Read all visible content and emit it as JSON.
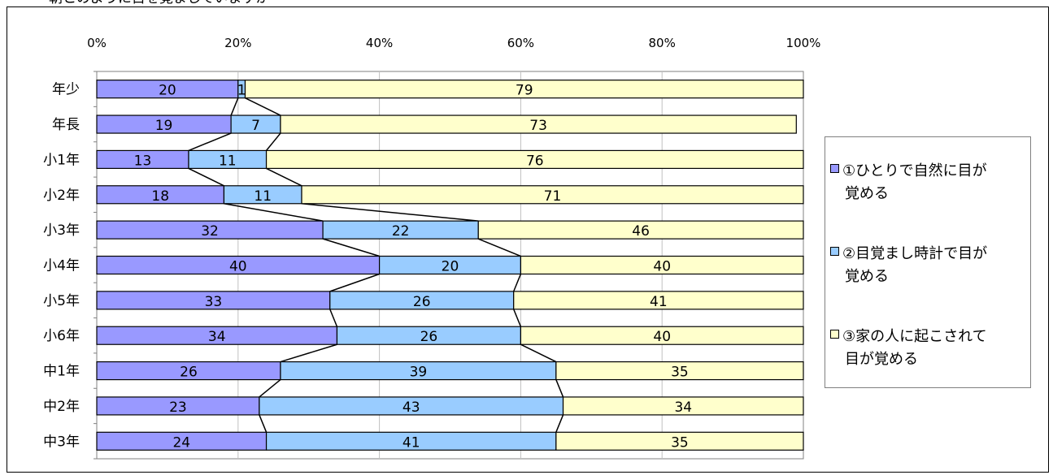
{
  "title": "朝とのように目を覚ましていますか",
  "chart_data": {
    "type": "bar",
    "orientation": "horizontal",
    "stacked": "percent",
    "x_ticks": [
      "0%",
      "20%",
      "40%",
      "60%",
      "80%",
      "100%"
    ],
    "xlim": [
      0,
      100
    ],
    "grid": true,
    "legend_position": "right",
    "categories": [
      "年少",
      "年長",
      "小1年",
      "小2年",
      "小3年",
      "小4年",
      "小5年",
      "小6年",
      "中1年",
      "中2年",
      "中3年"
    ],
    "series": [
      {
        "name": "①ひとりで自然に目が覚める",
        "color": "#9999ff",
        "values": [
          20,
          19,
          13,
          18,
          32,
          40,
          33,
          34,
          26,
          23,
          24
        ]
      },
      {
        "name": "②目覚まし時計で目が覚める",
        "color": "#99ccff",
        "values": [
          1,
          7,
          11,
          11,
          22,
          20,
          26,
          26,
          39,
          43,
          41
        ]
      },
      {
        "name": "③家の人に起こされて目が覚める",
        "color": "#ffffcc",
        "values": [
          79,
          73,
          76,
          71,
          46,
          40,
          41,
          40,
          35,
          34,
          35
        ]
      }
    ]
  },
  "legend": {
    "items": [
      {
        "line1": "①ひとりで自然に目が",
        "line2": "覚める"
      },
      {
        "line1": "②目覚まし時計で目が",
        "line2": "覚める"
      },
      {
        "line1": "③家の人に起こされて",
        "line2": "目が覚める"
      }
    ]
  }
}
